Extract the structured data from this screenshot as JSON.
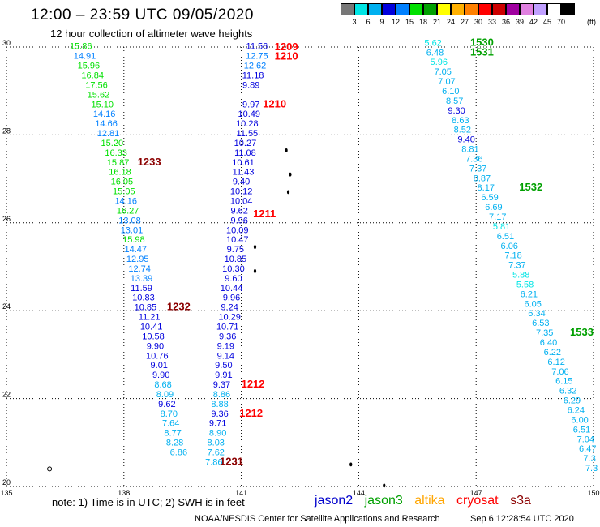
{
  "header": {
    "title": "12:00 – 23:59 UTC 09/05/2020",
    "subtitle": "12 hour collection of altimeter wave heights"
  },
  "colorbar": {
    "colors": [
      "#777777",
      "#00e5e5",
      "#00b0f0",
      "#0000dd",
      "#0080ff",
      "#00e000",
      "#00a000",
      "#ffff00",
      "#ffb000",
      "#ff8000",
      "#ff0000",
      "#cc0000",
      "#a000a0",
      "#e080e0",
      "#c0a0ff",
      "#ffffff",
      "#000000"
    ],
    "labels": [
      "3",
      "6",
      "9",
      "12",
      "15",
      "18",
      "21",
      "24",
      "27",
      "30",
      "33",
      "36",
      "39",
      "42",
      "45",
      "70"
    ],
    "unit": "(ft)"
  },
  "chart_data": {
    "type": "scatter",
    "xlim": [
      135,
      150
    ],
    "ylim": [
      20,
      30
    ],
    "xticks": [
      "135",
      "138",
      "141",
      "144",
      "147",
      "150"
    ],
    "yticks": [
      "30",
      "28",
      "26",
      "24",
      "22",
      "20"
    ],
    "grid": true,
    "series": [
      {
        "name": "jason3",
        "color": "#00a000",
        "points": [
          [
            136.9,
            29.95,
            "15.86"
          ],
          [
            137.0,
            29.73,
            "14.91"
          ],
          [
            137.1,
            29.51,
            "15.96"
          ],
          [
            137.2,
            29.29,
            "16.84"
          ],
          [
            137.3,
            29.07,
            "17.56"
          ],
          [
            137.35,
            28.85,
            "15.62"
          ],
          [
            137.45,
            28.63,
            "15.10"
          ],
          [
            137.5,
            28.41,
            "14.16"
          ],
          [
            137.55,
            28.19,
            "14.66"
          ],
          [
            137.6,
            27.97,
            "12.81"
          ],
          [
            137.7,
            27.75,
            "15.20"
          ],
          [
            137.8,
            27.53,
            "16.33"
          ],
          [
            137.85,
            27.31,
            "15.87"
          ],
          [
            137.9,
            27.09,
            "16.18"
          ],
          [
            137.95,
            26.87,
            "16.05"
          ],
          [
            138.0,
            26.65,
            "15.05"
          ],
          [
            138.05,
            26.43,
            "14.16"
          ],
          [
            138.1,
            26.21,
            "16.27"
          ],
          [
            138.15,
            25.99,
            "13.08"
          ],
          [
            138.2,
            25.77,
            "13.01"
          ],
          [
            138.25,
            25.55,
            "15.98"
          ],
          [
            138.3,
            25.33,
            "14.47"
          ],
          [
            138.35,
            25.11,
            "12.95"
          ],
          [
            138.4,
            24.89,
            "12.74"
          ],
          [
            138.45,
            24.67,
            "13.39"
          ]
        ]
      },
      {
        "name": "jason2",
        "color": "#0000cc",
        "points": [
          [
            138.45,
            24.45,
            "11.59"
          ],
          [
            138.5,
            24.23,
            "10.83"
          ],
          [
            138.55,
            24.01,
            "10.85"
          ],
          [
            138.65,
            23.79,
            "11.21"
          ],
          [
            138.7,
            23.57,
            "10.41"
          ],
          [
            138.75,
            23.35,
            "10.58"
          ],
          [
            138.8,
            23.13,
            "9.90"
          ],
          [
            138.85,
            22.91,
            "10.76"
          ],
          [
            138.9,
            22.69,
            "9.01"
          ],
          [
            138.95,
            22.47,
            "9.90"
          ],
          [
            139.0,
            22.25,
            "8.68"
          ],
          [
            139.05,
            22.03,
            "8.09"
          ],
          [
            139.1,
            21.81,
            "9.62"
          ],
          [
            139.15,
            21.59,
            "8.70"
          ],
          [
            139.2,
            21.37,
            "7.64"
          ],
          [
            139.25,
            21.15,
            "8.77"
          ],
          [
            139.3,
            20.93,
            "8.28"
          ],
          [
            139.4,
            20.71,
            "6.86"
          ]
        ]
      },
      {
        "name": "jason2",
        "color": "#0000cc",
        "points": [
          [
            141.4,
            29.95,
            "11.56"
          ],
          [
            141.4,
            29.73,
            "12.75"
          ],
          [
            141.35,
            29.51,
            "12.62"
          ],
          [
            141.3,
            29.29,
            "11.18"
          ],
          [
            141.25,
            29.07,
            "9.89"
          ],
          [
            141.25,
            28.63,
            "9.97"
          ],
          [
            141.2,
            28.41,
            "10.49"
          ],
          [
            141.15,
            28.19,
            "10.28"
          ],
          [
            141.15,
            27.97,
            "11.55"
          ],
          [
            141.1,
            27.75,
            "10.27"
          ],
          [
            141.1,
            27.53,
            "11.08"
          ],
          [
            141.05,
            27.31,
            "10.61"
          ],
          [
            141.05,
            27.09,
            "11.43"
          ],
          [
            141.0,
            26.87,
            "9.40"
          ],
          [
            141.0,
            26.65,
            "10.12"
          ],
          [
            141.0,
            26.43,
            "10.04"
          ],
          [
            140.95,
            26.21,
            "9.62"
          ],
          [
            140.95,
            25.99,
            "9.96"
          ],
          [
            140.9,
            25.77,
            "10.09"
          ],
          [
            140.9,
            25.55,
            "10.47"
          ],
          [
            140.85,
            25.33,
            "9.75"
          ],
          [
            140.85,
            25.11,
            "10.85"
          ],
          [
            140.8,
            24.89,
            "10.30"
          ],
          [
            140.8,
            24.67,
            "9.60"
          ],
          [
            140.75,
            24.45,
            "10.44"
          ],
          [
            140.75,
            24.23,
            "9.96"
          ],
          [
            140.7,
            24.01,
            "9.24"
          ],
          [
            140.7,
            23.79,
            "10.29"
          ],
          [
            140.65,
            23.57,
            "10.71"
          ],
          [
            140.65,
            23.35,
            "9.36"
          ],
          [
            140.6,
            23.13,
            "9.19"
          ],
          [
            140.6,
            22.91,
            "9.14"
          ],
          [
            140.55,
            22.69,
            "9.50"
          ],
          [
            140.55,
            22.47,
            "9.91"
          ],
          [
            140.5,
            22.25,
            "9.37"
          ],
          [
            140.5,
            22.03,
            "8.86"
          ],
          [
            140.45,
            21.81,
            "8.88"
          ],
          [
            140.45,
            21.59,
            "9.36"
          ],
          [
            140.4,
            21.37,
            "9.71"
          ],
          [
            140.4,
            21.15,
            "8.90"
          ],
          [
            140.35,
            20.93,
            "8.03"
          ],
          [
            140.35,
            20.71,
            "7.62"
          ],
          [
            140.3,
            20.49,
            "7.86"
          ]
        ]
      },
      {
        "name": "",
        "color": "#00c8c8",
        "points": [
          [
            145.9,
            30.03,
            "5.62"
          ],
          [
            145.95,
            29.81,
            "6.48"
          ],
          [
            146.05,
            29.59,
            "5.96"
          ],
          [
            146.15,
            29.37,
            "7.05"
          ],
          [
            146.25,
            29.15,
            "7.07"
          ],
          [
            146.35,
            28.93,
            "6.10"
          ],
          [
            146.45,
            28.71,
            "8.57"
          ],
          [
            146.5,
            28.49,
            "9.30"
          ],
          [
            146.6,
            28.27,
            "8.63"
          ],
          [
            146.65,
            28.05,
            "8.52"
          ],
          [
            146.75,
            27.83,
            "9.40"
          ],
          [
            146.85,
            27.61,
            "8.81"
          ],
          [
            146.95,
            27.39,
            "7.36"
          ],
          [
            147.05,
            27.17,
            "7.37"
          ],
          [
            147.15,
            26.95,
            "8.87"
          ],
          [
            147.25,
            26.73,
            "8.17"
          ],
          [
            147.35,
            26.51,
            "6.59"
          ],
          [
            147.45,
            26.29,
            "6.69"
          ],
          [
            147.55,
            26.07,
            "7.17"
          ],
          [
            147.65,
            25.85,
            "5.81"
          ],
          [
            147.75,
            25.63,
            "6.51"
          ],
          [
            147.85,
            25.41,
            "6.06"
          ],
          [
            147.95,
            25.19,
            "7.18"
          ],
          [
            148.05,
            24.97,
            "7.37"
          ],
          [
            148.15,
            24.75,
            "5.88"
          ],
          [
            148.25,
            24.53,
            "5.58"
          ],
          [
            148.35,
            24.31,
            "6.21"
          ],
          [
            148.45,
            24.09,
            "6.05"
          ],
          [
            148.55,
            23.87,
            "6.34"
          ],
          [
            148.65,
            23.65,
            "6.53"
          ],
          [
            148.75,
            23.43,
            "7.35"
          ],
          [
            148.85,
            23.21,
            "6.40"
          ],
          [
            148.95,
            22.99,
            "6.22"
          ],
          [
            149.05,
            22.77,
            "6.12"
          ],
          [
            149.15,
            22.55,
            "7.06"
          ],
          [
            149.25,
            22.33,
            "6.15"
          ],
          [
            149.35,
            22.11,
            "6.32"
          ],
          [
            149.45,
            21.89,
            "6.29"
          ],
          [
            149.55,
            21.67,
            "6.24"
          ],
          [
            149.65,
            21.45,
            "6.00"
          ],
          [
            149.7,
            21.23,
            "6.51"
          ],
          [
            149.8,
            21.01,
            "7.04"
          ],
          [
            149.85,
            20.79,
            "6.47"
          ],
          [
            149.9,
            20.57,
            "7.3"
          ],
          [
            149.95,
            20.35,
            "7.3"
          ]
        ]
      }
    ],
    "pass_labels": [
      {
        "text": "1209",
        "color": "#ff0000",
        "x": 141.85,
        "y": 29.93
      },
      {
        "text": "1210",
        "color": "#ff0000",
        "x": 141.85,
        "y": 29.71
      },
      {
        "text": "1210",
        "color": "#ff0000",
        "x": 141.55,
        "y": 28.63
      },
      {
        "text": "1233",
        "color": "#8b0000",
        "x": 138.35,
        "y": 27.31
      },
      {
        "text": "1211",
        "color": "#ff0000",
        "x": 141.3,
        "y": 26.13
      },
      {
        "text": "1232",
        "color": "#8b0000",
        "x": 139.1,
        "y": 24.01
      },
      {
        "text": "1212",
        "color": "#ff0000",
        "x": 141.0,
        "y": 22.25
      },
      {
        "text": "1212",
        "color": "#ff0000",
        "x": 140.95,
        "y": 21.59
      },
      {
        "text": "1231",
        "color": "#8b0000",
        "x": 140.45,
        "y": 20.49
      },
      {
        "text": "1530",
        "color": "#00a000",
        "x": 146.85,
        "y": 30.03
      },
      {
        "text": "1531",
        "color": "#00a000",
        "x": 146.85,
        "y": 29.81
      },
      {
        "text": "1532",
        "color": "#00a000",
        "x": 148.1,
        "y": 26.73
      },
      {
        "text": "1533",
        "color": "#00a000",
        "x": 149.4,
        "y": 23.43
      }
    ],
    "islands": [
      [
        142.15,
        27.65
      ],
      [
        142.25,
        27.1
      ],
      [
        142.2,
        26.7
      ],
      [
        141.35,
        25.45
      ],
      [
        141.35,
        24.9
      ],
      [
        143.8,
        20.5
      ],
      [
        144.65,
        20.02
      ],
      [
        136.1,
        20.4
      ]
    ]
  },
  "legend": {
    "jason2": "jason2",
    "jason3": "jason3",
    "altika": "altika",
    "cryosat": "cryosat",
    "s3a": "s3a",
    "colors": {
      "jason2": "#0000cc",
      "jason3": "#00a000",
      "altika": "#ffa500",
      "cryosat": "#ff0000",
      "s3a": "#8b0000"
    }
  },
  "footer": {
    "note": "note:  1) Time is in UTC;  2) SWH is in feet",
    "credit": "NOAA/NESDIS Center for Satellite Applications and Research",
    "timestamp": "Sep  6 12:28:54 UTC 2020"
  }
}
